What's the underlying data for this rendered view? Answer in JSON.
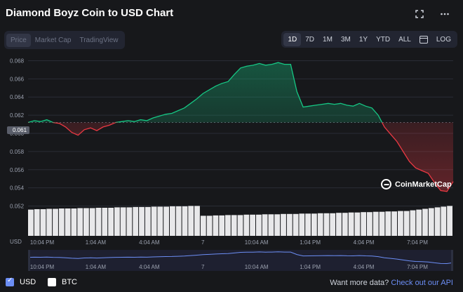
{
  "header": {
    "title": "Diamond Boyz Coin to USD Chart",
    "fullscreen_icon": "expand-icon",
    "more_icon": "more-dots-icon"
  },
  "view_tabs": [
    {
      "label": "Price",
      "active": true
    },
    {
      "label": "Market Cap",
      "active": false
    },
    {
      "label": "TradingView",
      "active": false
    }
  ],
  "range_tabs": [
    {
      "label": "1D",
      "active": true
    },
    {
      "label": "7D",
      "active": false
    },
    {
      "label": "1M",
      "active": false
    },
    {
      "label": "3M",
      "active": false
    },
    {
      "label": "1Y",
      "active": false
    },
    {
      "label": "YTD",
      "active": false
    },
    {
      "label": "ALL",
      "active": false
    }
  ],
  "calendar_icon": "calendar-icon",
  "log_label": "LOG",
  "price_tag": "0.061",
  "watermark": "CoinMarketCap",
  "volume_axis_label": "USD",
  "footer": {
    "usd_label": "USD",
    "btc_label": "BTC",
    "more_text": "Want more data?",
    "more_link": "Check out our API"
  },
  "colors": {
    "up": "#16c784",
    "down": "#ea3943",
    "accent": "#6c8ef5"
  },
  "chart_data": {
    "type": "line",
    "title": "",
    "ylim": [
      0.0515,
      0.0685
    ],
    "y_ticks": [
      "0.052",
      "0.054",
      "0.056",
      "0.058",
      "0.060",
      "0.062",
      "0.064",
      "0.066",
      "0.068"
    ],
    "x_ticks": [
      "10:04 PM",
      "1:04 AM",
      "4:04 AM",
      "7",
      "10:04 AM",
      "1:04 PM",
      "4:04 PM",
      "7:04 PM"
    ],
    "reference_value": 0.0612,
    "series": [
      {
        "values": [
          0.0612,
          0.0614,
          0.0613,
          0.0615,
          0.0612,
          0.0611,
          0.0607,
          0.0601,
          0.0598,
          0.0604,
          0.0606,
          0.0603,
          0.0607,
          0.0609,
          0.0612,
          0.0613,
          0.0614,
          0.0613,
          0.0615,
          0.0614,
          0.0617,
          0.0619,
          0.0621,
          0.0622,
          0.0625,
          0.0628,
          0.0633,
          0.0638,
          0.0644,
          0.0648,
          0.0652,
          0.0655,
          0.0657,
          0.0665,
          0.0672,
          0.0674,
          0.0675,
          0.0677,
          0.0675,
          0.0676,
          0.0678,
          0.0676,
          0.0676,
          0.0646,
          0.0629,
          0.063,
          0.0631,
          0.0632,
          0.0633,
          0.0632,
          0.0633,
          0.0631,
          0.063,
          0.0633,
          0.063,
          0.0628,
          0.062,
          0.0607,
          0.0599,
          0.0591,
          0.058,
          0.0569,
          0.0562,
          0.0559,
          0.0556,
          0.0546,
          0.0537,
          0.0536,
          0.0547
        ]
      }
    ],
    "volume": [
      0.72,
      0.73,
      0.73,
      0.74,
      0.74,
      0.75,
      0.75,
      0.75,
      0.76,
      0.76,
      0.76,
      0.77,
      0.77,
      0.77,
      0.78,
      0.78,
      0.78,
      0.79,
      0.79,
      0.79,
      0.8,
      0.8,
      0.8,
      0.81,
      0.81,
      0.81,
      0.82,
      0.82,
      0.55,
      0.55,
      0.56,
      0.56,
      0.57,
      0.57,
      0.57,
      0.58,
      0.58,
      0.58,
      0.59,
      0.59,
      0.59,
      0.6,
      0.6,
      0.6,
      0.61,
      0.61,
      0.61,
      0.62,
      0.62,
      0.62,
      0.63,
      0.63,
      0.64,
      0.64,
      0.65,
      0.65,
      0.66,
      0.66,
      0.67,
      0.67,
      0.68,
      0.68,
      0.7,
      0.72,
      0.74,
      0.76,
      0.78,
      0.8,
      0.82
    ]
  }
}
